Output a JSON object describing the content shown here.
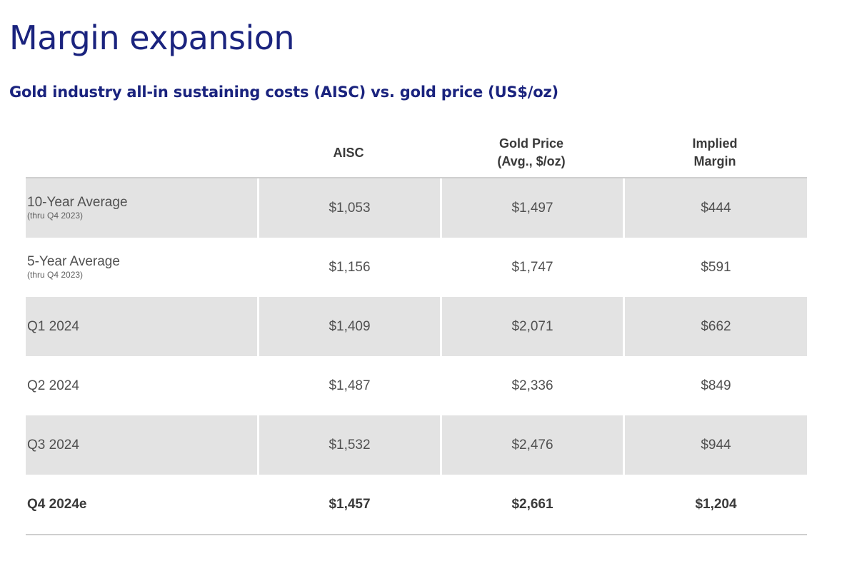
{
  "page": {
    "title": "Margin expansion",
    "subtitle": "Gold industry all-in sustaining costs (AISC) vs. gold price (US$/oz)"
  },
  "table": {
    "headers": [
      "",
      "AISC",
      "Gold Price\n(Avg., $/oz)",
      "Implied\nMargin"
    ],
    "rows": [
      {
        "label": "10-Year Average",
        "sublabel": "(thru Q4 2023)",
        "aisc": "$1,053",
        "gold_price": "$1,497",
        "margin": "$444"
      },
      {
        "label": "5-Year Average",
        "sublabel": "(thru Q4 2023)",
        "aisc": "$1,156",
        "gold_price": "$1,747",
        "margin": "$591"
      },
      {
        "label": "Q1 2024",
        "sublabel": "",
        "aisc": "$1,409",
        "gold_price": "$2,071",
        "margin": "$662"
      },
      {
        "label": "Q2 2024",
        "sublabel": "",
        "aisc": "$1,487",
        "gold_price": "$2,336",
        "margin": "$849"
      },
      {
        "label": "Q3 2024",
        "sublabel": "",
        "aisc": "$1,532",
        "gold_price": "$2,476",
        "margin": "$944"
      },
      {
        "label": "Q4 2024e",
        "sublabel": "",
        "aisc": "$1,457",
        "gold_price": "$2,661",
        "margin": "$1,204"
      }
    ]
  },
  "colors": {
    "title": "#1a237e",
    "row_shade": "#e3e3e3",
    "rule": "#cfcfcf"
  }
}
